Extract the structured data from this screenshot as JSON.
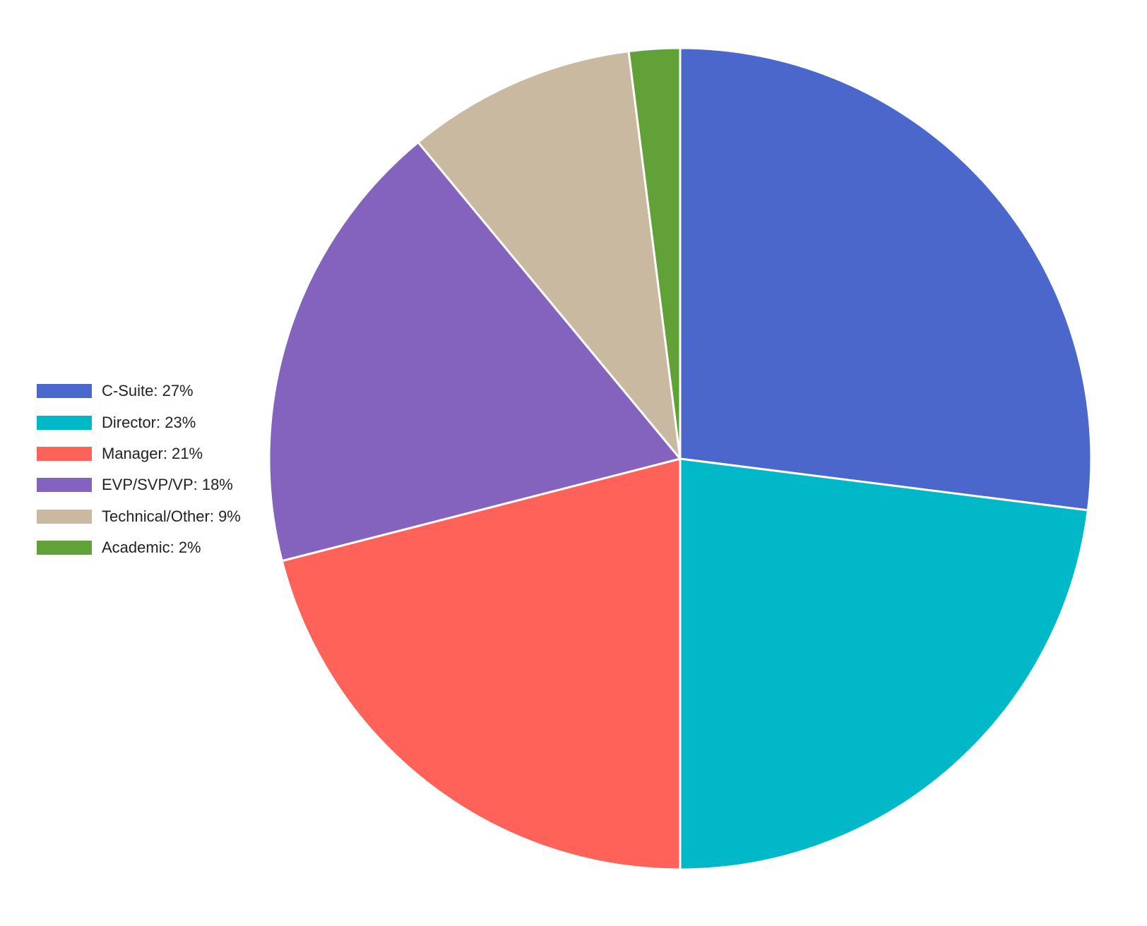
{
  "chart_data": {
    "type": "pie",
    "title": "",
    "legend_position": "left",
    "start_angle_deg": 0,
    "direction": "clockwise",
    "slices": [
      {
        "label": "C-Suite: 27%",
        "value": 27,
        "color": "#4B67CB"
      },
      {
        "label": "Director: 23%",
        "value": 23,
        "color": "#00B8C8"
      },
      {
        "label": "Manager: 21%",
        "value": 21,
        "color": "#FF6258"
      },
      {
        "label": "EVP/SVP/VP: 18%",
        "value": 18,
        "color": "#8363BD"
      },
      {
        "label": "Technical/Other: 9%",
        "value": 9,
        "color": "#C8B9A0"
      },
      {
        "label": "Academic: 2%",
        "value": 2,
        "color": "#62A137"
      }
    ]
  }
}
